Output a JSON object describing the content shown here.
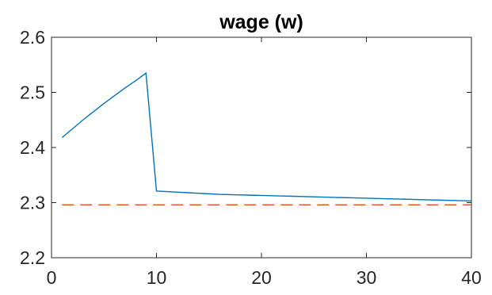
{
  "chart_data": {
    "type": "line",
    "title": "wage (w)",
    "xlabel": "",
    "ylabel": "",
    "xlim": [
      0,
      40
    ],
    "ylim": [
      2.2,
      2.6
    ],
    "xticks": [
      0,
      10,
      20,
      30,
      40
    ],
    "yticks": [
      2.2,
      2.3,
      2.4,
      2.5,
      2.6
    ],
    "xtick_labels": [
      "0",
      "10",
      "20",
      "30",
      "40"
    ],
    "ytick_labels": [
      "2.2",
      "2.3",
      "2.4",
      "2.5",
      "2.6"
    ],
    "grid": false,
    "legend": "none",
    "series": [
      {
        "color": "#0072BD",
        "line_style": "solid",
        "x": [
          1,
          2,
          3,
          4,
          5,
          6,
          7,
          8,
          9,
          10,
          11,
          12,
          13,
          14,
          15,
          16,
          17,
          18,
          19,
          20,
          21,
          22,
          23,
          24,
          25,
          26,
          27,
          28,
          29,
          30,
          31,
          32,
          33,
          34,
          35,
          36,
          37,
          38,
          39,
          40
        ],
        "values": [
          2.418,
          2.434,
          2.45,
          2.465,
          2.48,
          2.494,
          2.508,
          2.521,
          2.535,
          2.321,
          2.32,
          2.319,
          2.318,
          2.317,
          2.316,
          2.315,
          2.3145,
          2.314,
          2.3135,
          2.313,
          2.3125,
          2.312,
          2.3115,
          2.311,
          2.3105,
          2.31,
          2.3095,
          2.309,
          2.3085,
          2.308,
          2.3075,
          2.307,
          2.3065,
          2.306,
          2.3055,
          2.305,
          2.3045,
          2.304,
          2.3035,
          2.303
        ]
      },
      {
        "color": "#D95319",
        "line_style": "dashed",
        "x": [
          1,
          40
        ],
        "values": [
          2.296,
          2.296
        ]
      }
    ]
  }
}
